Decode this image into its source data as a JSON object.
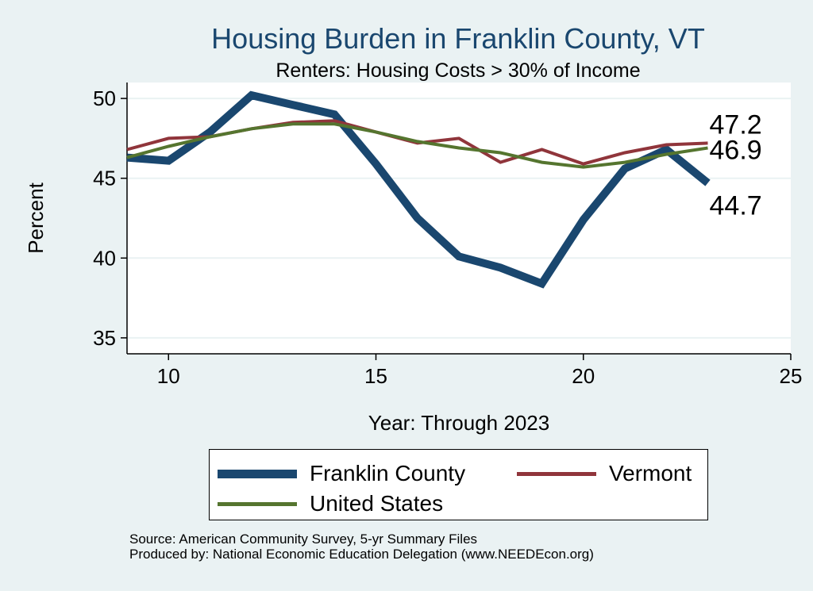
{
  "chart_data": {
    "type": "line",
    "title": "Housing Burden in Franklin County, VT",
    "subtitle": "Renters: Housing Costs > 30% of Income",
    "xlabel": "Year: Through 2023",
    "ylabel": "Percent",
    "xlim": [
      9,
      25
    ],
    "ylim": [
      34,
      51
    ],
    "xticks": [
      10,
      15,
      20,
      25
    ],
    "yticks": [
      35,
      40,
      45,
      50
    ],
    "grid": true,
    "legend_position": "bottom",
    "x": [
      9,
      10,
      11,
      12,
      13,
      14,
      15,
      16,
      17,
      18,
      19,
      20,
      21,
      22,
      23
    ],
    "series": [
      {
        "name": "Franklin County",
        "color": "#1a476f",
        "width": 10,
        "values": [
          46.3,
          46.1,
          47.9,
          50.2,
          49.6,
          49.0,
          45.9,
          42.5,
          40.1,
          39.4,
          38.4,
          42.4,
          45.6,
          46.8,
          44.7
        ],
        "end_label": "44.7"
      },
      {
        "name": "Vermont",
        "color": "#90353b",
        "width": 4,
        "values": [
          46.8,
          47.5,
          47.6,
          48.1,
          48.5,
          48.6,
          47.9,
          47.2,
          47.5,
          46.0,
          46.8,
          45.9,
          46.6,
          47.1,
          47.2
        ],
        "end_label": "47.2"
      },
      {
        "name": "United States",
        "color": "#55752f",
        "width": 4,
        "values": [
          46.3,
          47.0,
          47.6,
          48.1,
          48.4,
          48.4,
          47.9,
          47.3,
          46.9,
          46.6,
          46.0,
          45.7,
          46.0,
          46.5,
          46.9
        ],
        "end_label": "46.9"
      }
    ]
  },
  "source_lines": [
    "Source: American Community Survey, 5-yr Summary Files",
    "Produced by: National Economic Education Delegation (www.NEEDEcon.org)"
  ]
}
